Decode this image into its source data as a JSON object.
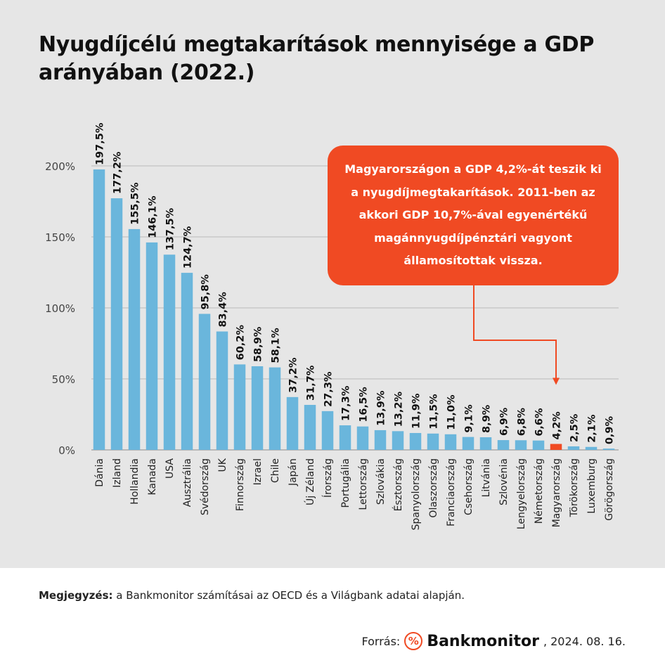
{
  "title": "Nyugdíjcélú megtakarítások mennyisége a GDP arányában (2022.)",
  "callout": "Magyarországon a GDP 4,2%-át teszik ki a nyugdíjmegtakarítások. 2011-ben az akkori GDP 10,7%-ával egyenértékű magánnyugdíjpénztári vagyont államosítottak vissza.",
  "note": {
    "label": "Megjegyzés:",
    "text": " a Bankmonitor számításai az OECD és a Világbank adatai alapján."
  },
  "source": {
    "label": "Forrás:",
    "brand": "Bankmonitor",
    "brand_icon": "percent-icon",
    "date": ", 2024. 08. 16."
  },
  "colors": {
    "bar": "#6ab6dc",
    "highlight": "#f04a23",
    "background": "#e6e6e6"
  },
  "chart_data": {
    "type": "bar",
    "categories": [
      "Dánia",
      "Izland",
      "Hollandia",
      "Kanada",
      "USA",
      "Ausztrália",
      "Svédország",
      "UK",
      "Finnország",
      "Izrael",
      "Chile",
      "Japán",
      "Új Zéland",
      "Írország",
      "Portugália",
      "Lettország",
      "Szlovákia",
      "Észtország",
      "Spanyolország",
      "Olaszország",
      "Franciaország",
      "Csehország",
      "Litvánia",
      "Szlovénia",
      "Lengyelország",
      "Németország",
      "Magyarország",
      "Törökország",
      "Luxemburg",
      "Görögország"
    ],
    "values": [
      197.5,
      177.2,
      155.5,
      146.1,
      137.5,
      124.7,
      95.8,
      83.4,
      60.2,
      58.9,
      58.1,
      37.2,
      31.7,
      27.3,
      17.3,
      16.5,
      13.9,
      13.2,
      11.9,
      11.5,
      11.0,
      9.1,
      8.9,
      6.9,
      6.8,
      6.6,
      4.2,
      2.5,
      2.1,
      0.9
    ],
    "labels": [
      "197,5%",
      "177,2%",
      "155,5%",
      "146,1%",
      "137,5%",
      "124,7%",
      "95,8%",
      "83,4%",
      "60,2%",
      "58,9%",
      "58,1%",
      "37,2%",
      "31,7%",
      "27,3%",
      "17,3%",
      "16,5%",
      "13,9%",
      "13,2%",
      "11,9%",
      "11,5%",
      "11,0%",
      "9,1%",
      "8,9%",
      "6,9%",
      "6,8%",
      "6,6%",
      "4,2%",
      "2,5%",
      "2,1%",
      "0,9%"
    ],
    "highlight": "Magyarország",
    "yticks": [
      "0%",
      "50%",
      "100%",
      "150%",
      "200%"
    ],
    "ylim": [
      0,
      200
    ],
    "grid": true
  }
}
